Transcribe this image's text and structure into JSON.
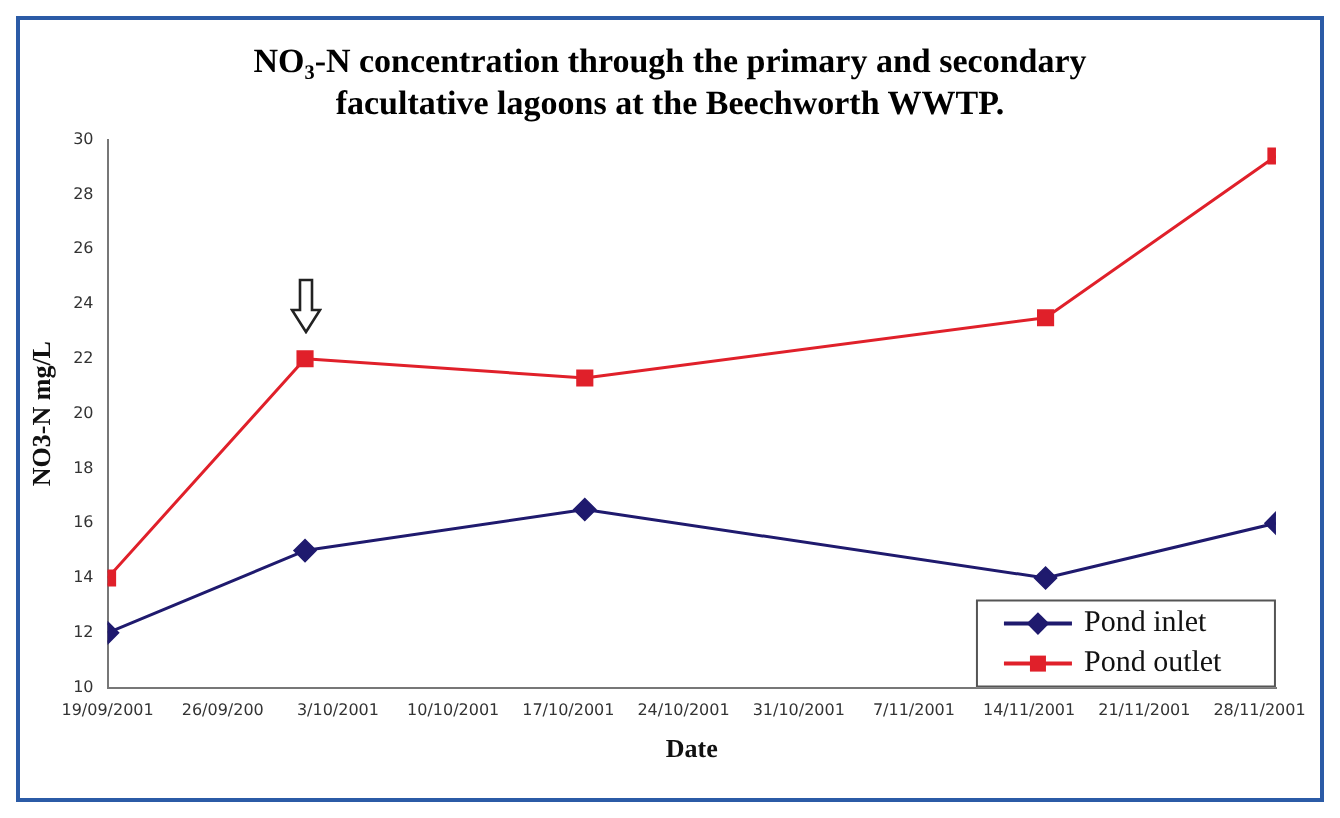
{
  "chart_data": {
    "type": "line",
    "title": "NO₃-N concentration through the primary and secondary facultative lagoons at the Beechworth WWTP.",
    "xlabel": "Date",
    "ylabel": "NO3-N mg/L",
    "x": [
      "2001-09-19",
      "2001-10-01",
      "2001-10-18",
      "2001-11-15",
      "2001-11-29"
    ],
    "series": [
      {
        "name": "Pond inlet",
        "color": "#1f1a6e",
        "marker": "diamond",
        "values": [
          12,
          15,
          16.5,
          14,
          16
        ]
      },
      {
        "name": "Pond outlet",
        "color": "#e0202a",
        "marker": "square",
        "values": [
          14,
          22,
          21.3,
          23.5,
          29.4
        ]
      }
    ],
    "xlim": [
      "2001-09-19",
      "2001-11-29"
    ],
    "xticks": [
      {
        "value": "2001-09-19",
        "label": "19/09/2001"
      },
      {
        "value": "2001-09-26",
        "label": "26/09/200"
      },
      {
        "value": "2001-10-03",
        "label": "3/10/2001"
      },
      {
        "value": "2001-10-10",
        "label": "10/10/2001"
      },
      {
        "value": "2001-10-17",
        "label": "17/10/2001"
      },
      {
        "value": "2001-10-24",
        "label": "24/10/2001"
      },
      {
        "value": "2001-10-31",
        "label": "31/10/2001"
      },
      {
        "value": "2001-11-07",
        "label": "7/11/2001"
      },
      {
        "value": "2001-11-14",
        "label": "14/11/2001"
      },
      {
        "value": "2001-11-21",
        "label": "21/11/2001"
      },
      {
        "value": "2001-11-28",
        "label": "28/11/2001"
      }
    ],
    "ylim": [
      10,
      30
    ],
    "yticks": [
      10,
      12,
      14,
      16,
      18,
      20,
      22,
      24,
      26,
      28,
      30
    ],
    "grid": false,
    "legend": "bottom right",
    "line_style": "solid"
  }
}
